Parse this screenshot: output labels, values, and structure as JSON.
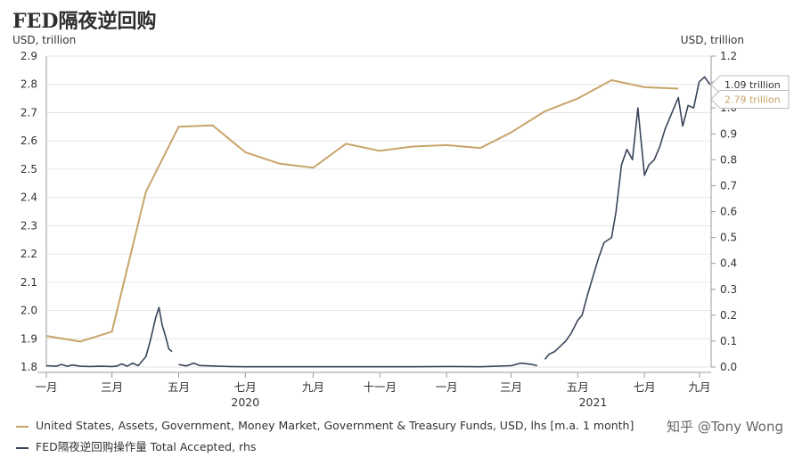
{
  "title": "FED隔夜逆回购",
  "left_unit": "USD, trillion",
  "right_unit": "USD, trillion",
  "watermark": "知乎 @Tony Wong",
  "colors": {
    "gold": "#c8a46a",
    "navy": "#39455a",
    "grid": "#e6e6e6",
    "axis": "#999999"
  },
  "chart_data": {
    "type": "line",
    "x_tick_labels": [
      "一月",
      "三月",
      "五月",
      "七月",
      "九月",
      "十一月",
      "一月",
      "三月",
      "五月",
      "七月",
      "九月"
    ],
    "year_labels": [
      "2020",
      "2021"
    ],
    "y_left": {
      "min": 1.8,
      "max": 2.9,
      "ticks": [
        "1.8",
        "1.9",
        "2.0",
        "2.1",
        "2.2",
        "2.3",
        "2.4",
        "2.5",
        "2.6",
        "2.7",
        "2.8",
        "2.9"
      ]
    },
    "y_right": {
      "min": 0.0,
      "max": 1.2,
      "ticks": [
        "0.0",
        "0.1",
        "0.2",
        "0.3",
        "0.4",
        "0.5",
        "0.6",
        "0.7",
        "0.8",
        "0.9",
        "1.0",
        "1.1",
        "1.2"
      ]
    },
    "series": [
      {
        "name": "United States, Assets, Government, Money Market, Government & Treasury Funds, USD, lhs [m.a. 1 month]",
        "axis": "left",
        "color": "#c8a46a",
        "x": [
          "2020-01-01",
          "2020-02-01",
          "2020-03-01",
          "2020-04-01",
          "2020-05-01",
          "2020-06-01",
          "2020-07-01",
          "2020-08-01",
          "2020-09-01",
          "2020-10-01",
          "2020-11-01",
          "2020-12-01",
          "2021-01-01",
          "2021-02-01",
          "2021-03-01",
          "2021-04-01",
          "2021-05-01",
          "2021-06-01",
          "2021-07-01",
          "2021-08-01"
        ],
        "y": [
          1.91,
          1.89,
          1.925,
          2.42,
          2.65,
          2.655,
          2.56,
          2.52,
          2.505,
          2.59,
          2.565,
          2.58,
          2.585,
          2.575,
          2.63,
          2.705,
          2.75,
          2.815,
          2.79,
          2.785
        ]
      },
      {
        "name": "FED隔夜逆回购操作量 Total Accepted, rhs",
        "axis": "right",
        "color": "#39455a",
        "segments": [
          {
            "x": [
              "2020-01-01",
              "2020-01-10",
              "2020-01-15",
              "2020-01-20",
              "2020-01-25",
              "2020-02-01",
              "2020-02-10",
              "2020-02-20",
              "2020-03-01",
              "2020-03-05",
              "2020-03-10",
              "2020-03-15",
              "2020-03-20",
              "2020-03-25",
              "2020-04-01",
              "2020-04-05",
              "2020-04-10",
              "2020-04-13",
              "2020-04-16",
              "2020-04-19",
              "2020-04-22",
              "2020-04-25"
            ],
            "y": [
              0.005,
              0.003,
              0.01,
              0.003,
              0.008,
              0.003,
              0.002,
              0.003,
              0.002,
              0.003,
              0.012,
              0.003,
              0.015,
              0.005,
              0.04,
              0.1,
              0.19,
              0.23,
              0.16,
              0.12,
              0.07,
              0.06
            ]
          },
          {
            "x": [
              "2020-05-01",
              "2020-05-08",
              "2020-05-15",
              "2020-05-20",
              "2020-06-01",
              "2020-06-15",
              "2020-07-01",
              "2020-08-01",
              "2020-09-01",
              "2020-10-01",
              "2020-11-01",
              "2020-12-01",
              "2021-01-01",
              "2021-02-01",
              "2021-03-01",
              "2021-03-10",
              "2021-03-20",
              "2021-03-25"
            ],
            "y": [
              0.01,
              0.004,
              0.015,
              0.006,
              0.004,
              0.002,
              0.001,
              0.001,
              0.001,
              0.001,
              0.001,
              0.001,
              0.002,
              0.001,
              0.005,
              0.015,
              0.01,
              0.005
            ]
          },
          {
            "x": [
              "2021-04-01",
              "2021-04-05",
              "2021-04-10",
              "2021-04-15",
              "2021-04-20",
              "2021-04-25",
              "2021-05-01",
              "2021-05-05",
              "2021-05-10",
              "2021-05-15",
              "2021-05-20",
              "2021-05-25",
              "2021-06-01",
              "2021-06-05",
              "2021-06-10",
              "2021-06-15",
              "2021-06-20",
              "2021-06-25",
              "2021-07-01",
              "2021-07-05",
              "2021-07-10",
              "2021-07-15",
              "2021-07-20",
              "2021-07-25",
              "2021-08-01",
              "2021-08-05",
              "2021-08-10",
              "2021-08-15",
              "2021-08-20",
              "2021-08-25",
              "2021-08-30"
            ],
            "y": [
              0.03,
              0.05,
              0.06,
              0.08,
              0.1,
              0.13,
              0.18,
              0.2,
              0.28,
              0.35,
              0.42,
              0.48,
              0.5,
              0.6,
              0.78,
              0.84,
              0.8,
              1.0,
              0.74,
              0.78,
              0.8,
              0.85,
              0.92,
              0.97,
              1.04,
              0.93,
              1.01,
              1.0,
              1.1,
              1.12,
              1.09
            ]
          }
        ]
      }
    ],
    "annotations": [
      {
        "label": "1.09 trillion",
        "series": 1
      },
      {
        "label": "2.79 trillion",
        "series": 0
      }
    ]
  }
}
